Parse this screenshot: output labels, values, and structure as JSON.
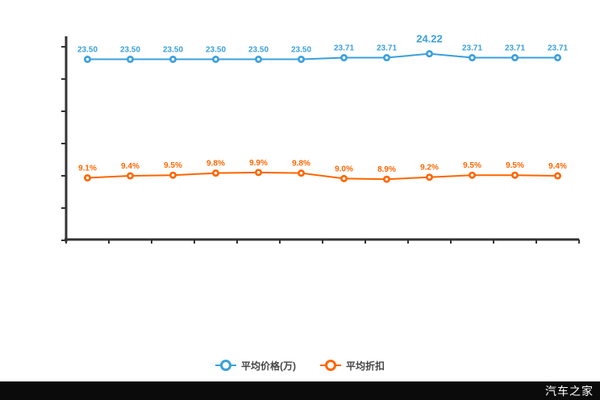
{
  "watermark": "汽车之家",
  "colors": {
    "axis": "#333333",
    "price_series": "#3aa0dc",
    "discount_series": "#ff6600",
    "legend_text": "#464646",
    "footer_bg": "#0b0b0b",
    "footer_text": "#ffffff"
  },
  "legend": {
    "items": [
      {
        "label": "平均价格(万)",
        "color": "#3aa0dc"
      },
      {
        "label": "平均折扣",
        "color": "#ff6600"
      }
    ]
  },
  "chart_data": {
    "type": "line",
    "title": "",
    "xlabel": "",
    "ylabel": "",
    "x_tick_labels": [],
    "num_points": 12,
    "grid": false,
    "legend_position": "bottom",
    "series": [
      {
        "name": "平均价格(万)",
        "color": "#3aa0dc",
        "axis_range": [
          0,
          26.5
        ],
        "label_decimals": 2,
        "label_suffix": "",
        "emphasis_index": 8,
        "values": [
          23.5,
          23.5,
          23.5,
          23.5,
          23.5,
          23.5,
          23.71,
          23.71,
          24.22,
          23.71,
          23.71,
          23.71
        ]
      },
      {
        "name": "平均折扣",
        "color": "#ff6600",
        "axis_range": [
          0,
          30
        ],
        "label_decimals": 1,
        "label_suffix": "%",
        "emphasis_index": -1,
        "values": [
          9.1,
          9.4,
          9.5,
          9.8,
          9.9,
          9.8,
          9.0,
          8.9,
          9.2,
          9.5,
          9.5,
          9.4
        ]
      }
    ]
  }
}
